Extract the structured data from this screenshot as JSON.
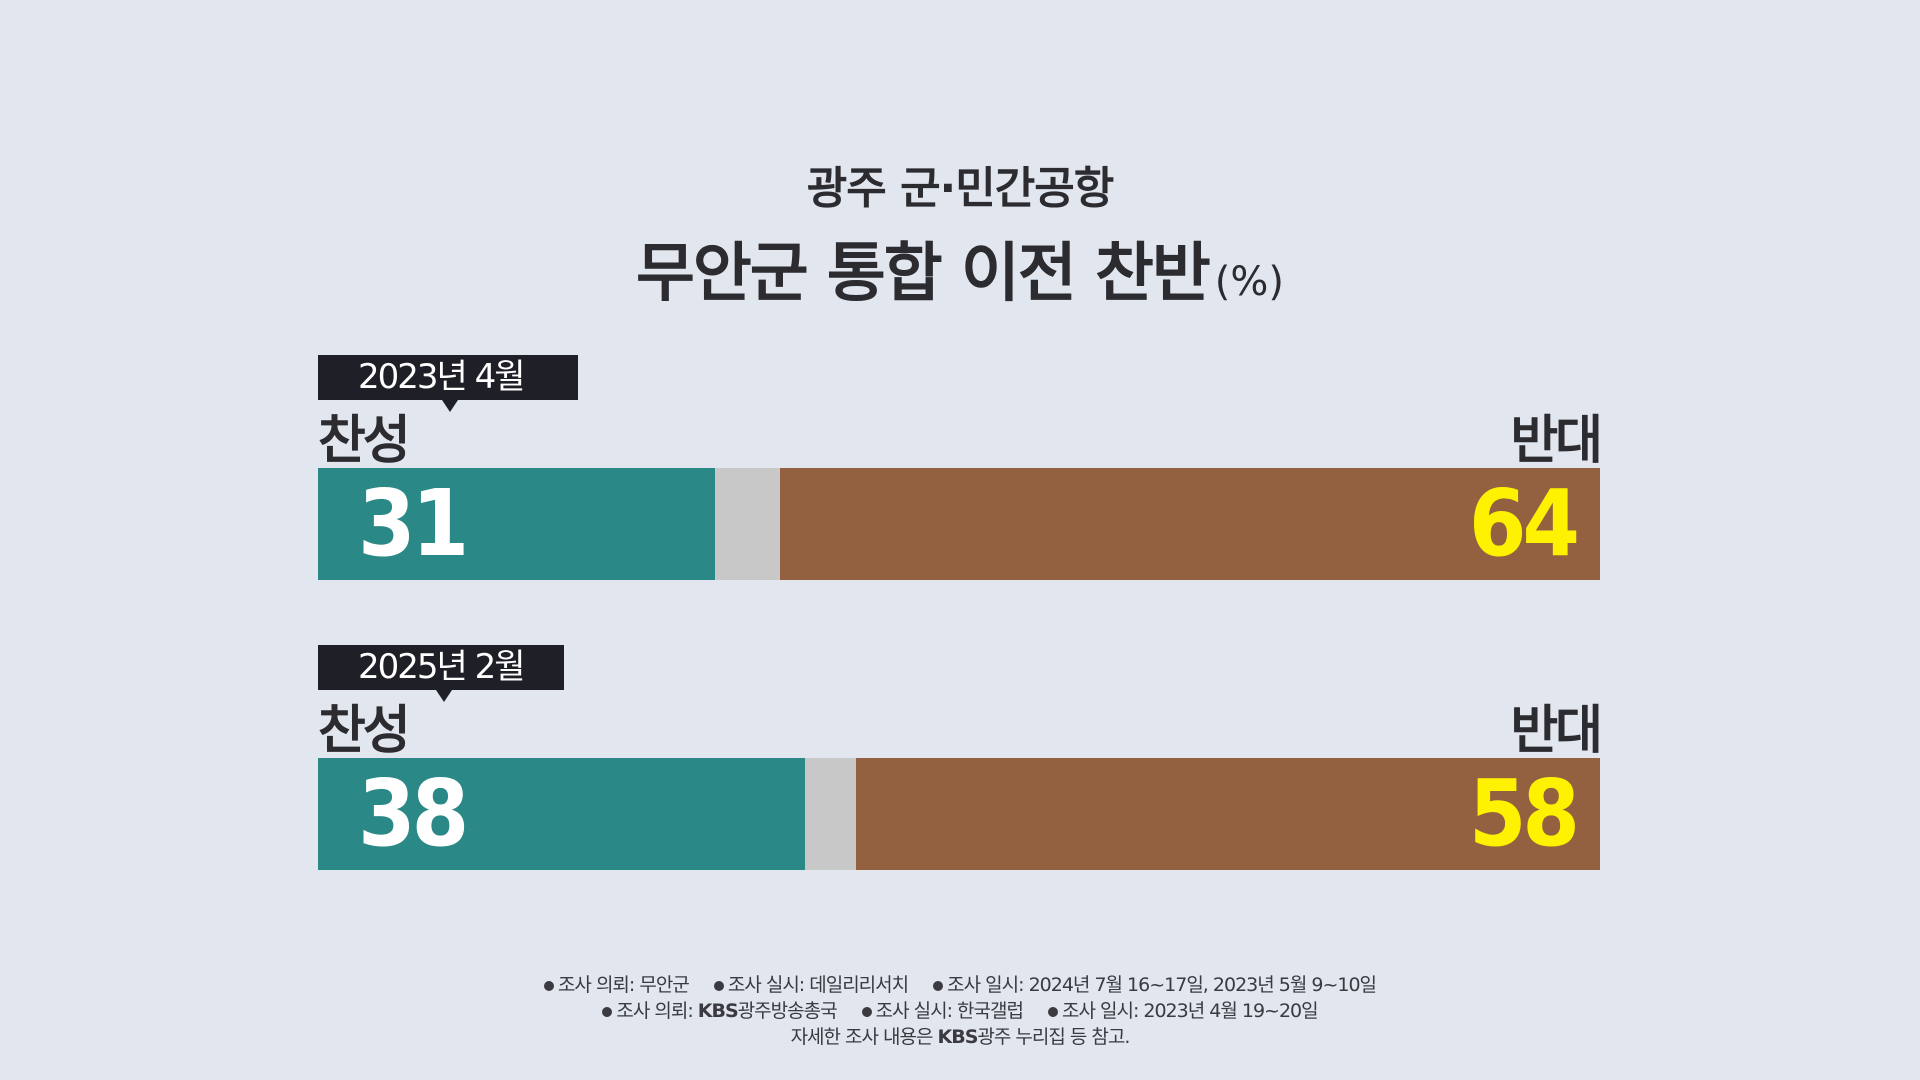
{
  "header": {
    "subtitle": "광주  군·민간공항",
    "title": "무안군 통합 이전 찬반",
    "unit": "(%)"
  },
  "chart_data": {
    "type": "bar",
    "orientation": "horizontal-stacked",
    "title": "무안군 통합 이전 찬반",
    "subtitle": "광주  군·민간공항",
    "unit": "(%)",
    "categories": [
      "2023년 4월",
      "2025년 2월"
    ],
    "series": [
      {
        "name": "찬성",
        "values": [
          31,
          38
        ],
        "color": "#2a8886"
      },
      {
        "name": "",
        "values": [
          5,
          4
        ],
        "color": "#c8c8c8"
      },
      {
        "name": "반대",
        "values": [
          64,
          58
        ],
        "color": "#946140"
      }
    ],
    "value_label_colors": {
      "for": "#ffffff",
      "against": "#fff200"
    },
    "xlim": [
      0,
      100
    ]
  },
  "surveys": [
    {
      "date": "2023년 4월",
      "for_label": "찬성",
      "against_label": "반대",
      "for": "31",
      "against": "64"
    },
    {
      "date": "2025년 2월",
      "for_label": "찬성",
      "against_label": "반대",
      "for": "38",
      "against": "58"
    }
  ],
  "notes": {
    "line1": [
      "조사 의뢰: 무안군",
      "조사 실시: 데일리리서치",
      "조사 일시: 2024년 7월 16~17일, 2023년 5월 9~10일"
    ],
    "line2": {
      "item1_prefix": "조사 의뢰: ",
      "item1_brand": "KBS",
      "item1_suffix": "광주방송총국",
      "item2": "조사 실시: 한국갤럽",
      "item3": "조사 일시: 2023년 4월 19~20일"
    },
    "line3": {
      "prefix": "자세한 조사 내용은 ",
      "brand": "KBS",
      "suffix": "광주 누리집 등 참고."
    }
  }
}
